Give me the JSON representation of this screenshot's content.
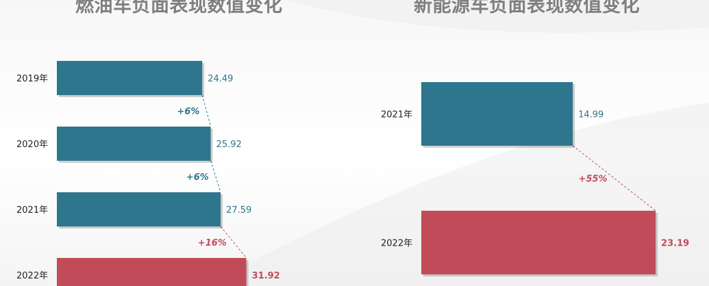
{
  "colors": {
    "base": "#2e768d",
    "highlight": "#c24b5a"
  },
  "chart_data": [
    {
      "type": "bar",
      "orientation": "horizontal",
      "title": "燃油车负面表现数值变化",
      "categories": [
        "2019年",
        "2020年",
        "2021年",
        "2022年"
      ],
      "values": [
        24.49,
        25.92,
        27.59,
        31.92
      ],
      "value_labels": [
        "24.49",
        "25.92",
        "27.59",
        "31.92"
      ],
      "highlight_index": 3,
      "changes": [
        "+6%",
        "+6%",
        "+16%"
      ]
    },
    {
      "type": "bar",
      "orientation": "horizontal",
      "title": "新能源车负面表现数值变化",
      "categories": [
        "2021年",
        "2022年"
      ],
      "values": [
        14.99,
        23.19
      ],
      "value_labels": [
        "14.99",
        "23.19"
      ],
      "highlight_index": 1,
      "changes": [
        "+55%"
      ]
    }
  ]
}
